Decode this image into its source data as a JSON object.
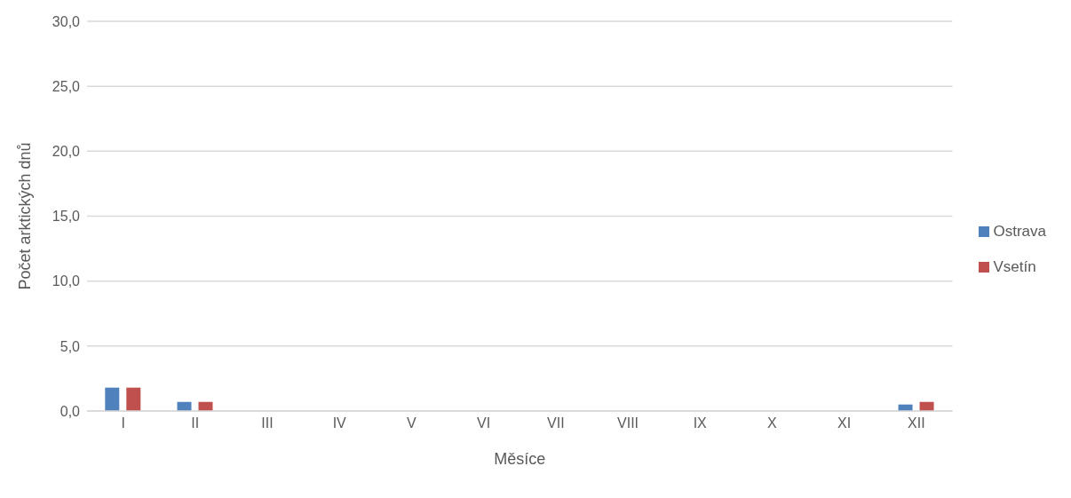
{
  "chart_data": {
    "type": "bar",
    "xlabel": "Měsíce",
    "ylabel": "Počet arktických dnů",
    "categories": [
      "I",
      "II",
      "III",
      "IV",
      "V",
      "VI",
      "VII",
      "VIII",
      "IX",
      "X",
      "XI",
      "XII"
    ],
    "series": [
      {
        "name": "Ostrava",
        "color": "#4f81bd",
        "values": [
          1.8,
          0.7,
          0,
          0,
          0,
          0,
          0,
          0,
          0,
          0,
          0,
          0.5
        ]
      },
      {
        "name": "Vsetín",
        "color": "#c0504d",
        "values": [
          1.8,
          0.7,
          0,
          0,
          0,
          0,
          0,
          0,
          0,
          0,
          0,
          0.7
        ]
      }
    ],
    "ylim": [
      0,
      30
    ],
    "yticks": [
      {
        "value": 0,
        "label": "0,0"
      },
      {
        "value": 5,
        "label": "5,0"
      },
      {
        "value": 10,
        "label": "10,0"
      },
      {
        "value": 15,
        "label": "15,0"
      },
      {
        "value": 20,
        "label": "20,0"
      },
      {
        "value": 25,
        "label": "25,0"
      },
      {
        "value": 30,
        "label": "30,0"
      }
    ],
    "grid": "y",
    "legend": "right"
  }
}
